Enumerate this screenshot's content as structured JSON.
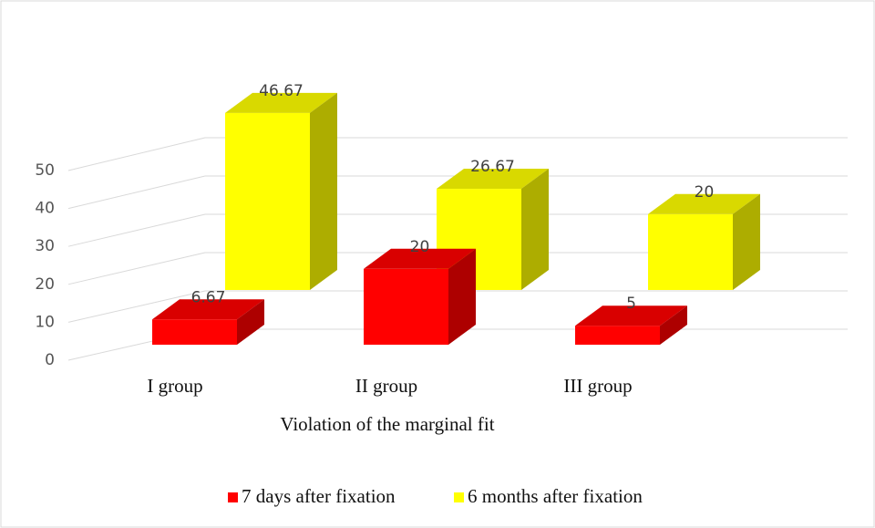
{
  "chart_data": {
    "type": "bar3d",
    "xlabel": "Violation of the marginal fit",
    "categories": [
      "I group",
      "II group",
      "III group"
    ],
    "series": [
      {
        "name": "7 days after fixation",
        "color": "#ff0000",
        "values": [
          6.67,
          20,
          5
        ]
      },
      {
        "name": "6 months after fixation",
        "color": "#ffff00",
        "values": [
          46.67,
          26.67,
          20
        ]
      }
    ],
    "ylim": [
      0,
      50
    ],
    "yticks": [
      0,
      10,
      20,
      30,
      40,
      50
    ],
    "grid": true,
    "legend": "bottom"
  }
}
